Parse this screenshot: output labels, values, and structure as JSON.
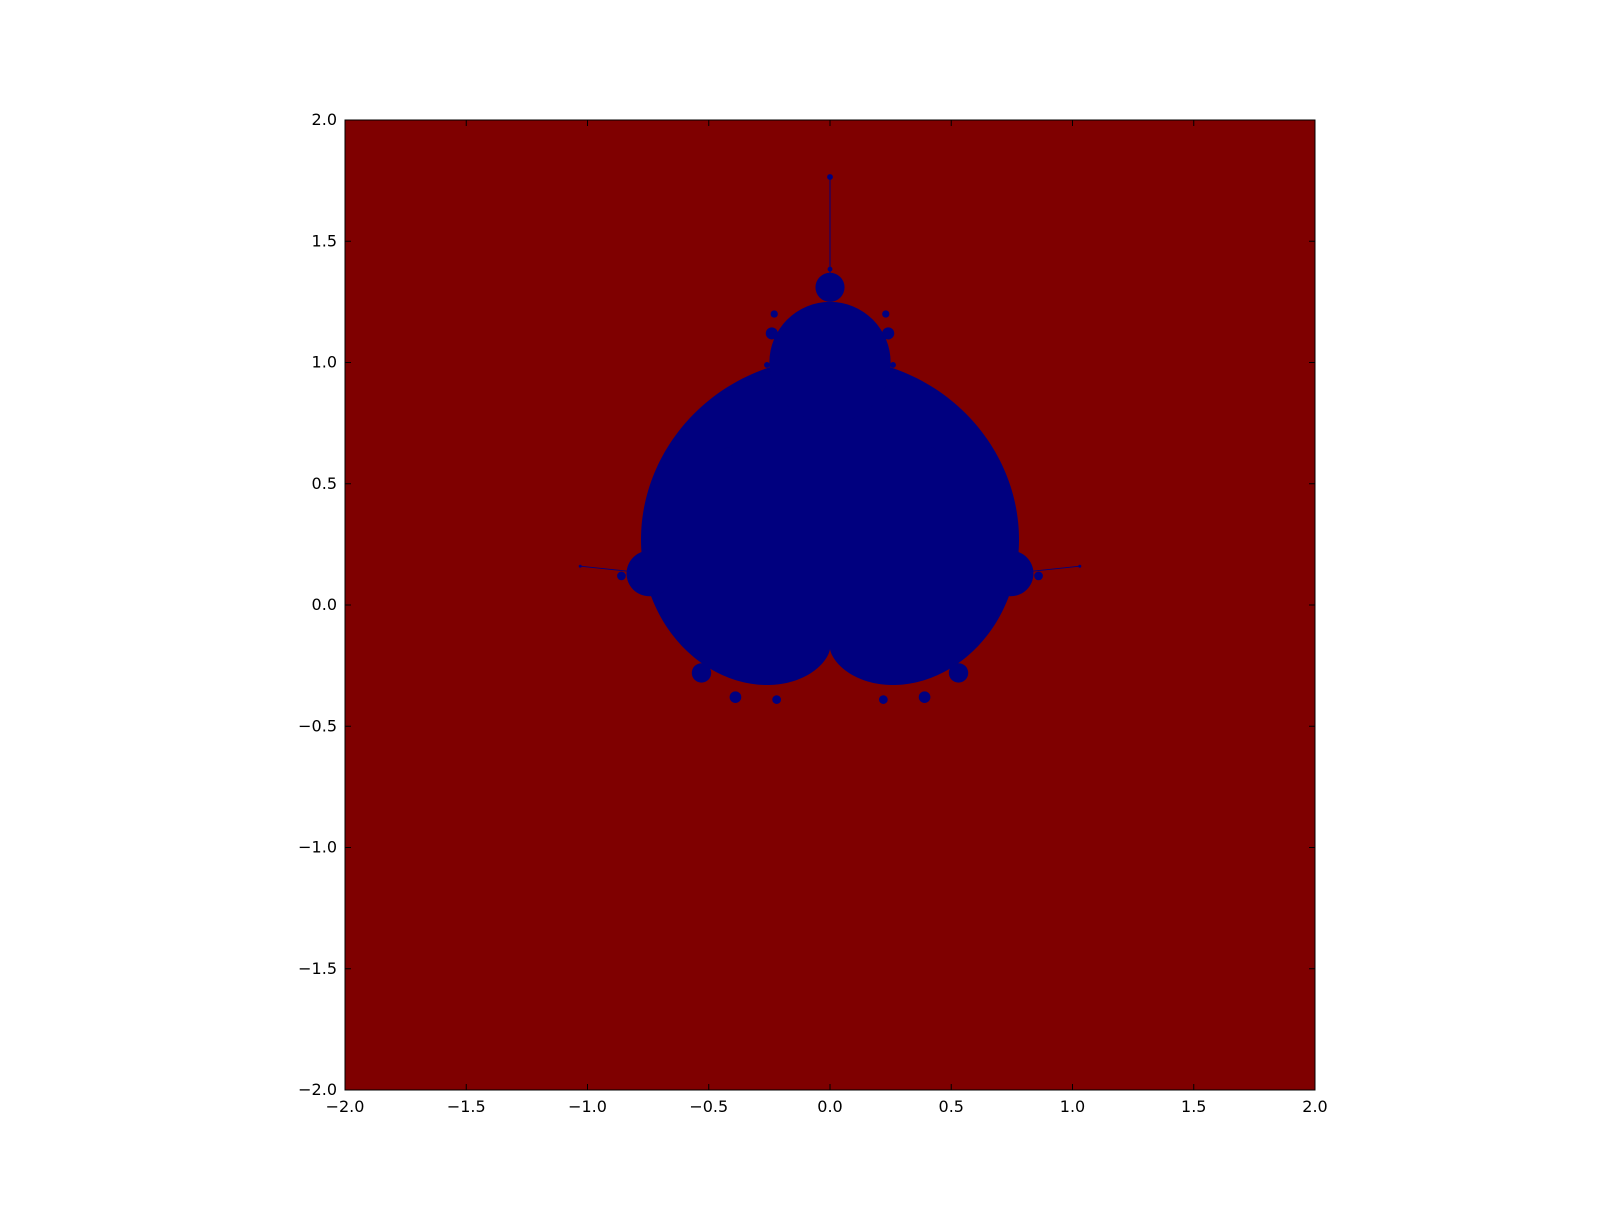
{
  "chart_data": {
    "type": "heatmap",
    "title": "",
    "xlabel": "",
    "ylabel": "",
    "xlim": [
      -2.0,
      2.0
    ],
    "ylim": [
      -2.0,
      2.0
    ],
    "grid": false,
    "legend": "none",
    "xticks": [
      -2.0,
      -1.5,
      -1.0,
      -0.5,
      0.0,
      0.5,
      1.0,
      1.5,
      2.0
    ],
    "yticks": [
      -2.0,
      -1.5,
      -1.0,
      -0.5,
      0.0,
      0.5,
      1.0,
      1.5,
      2.0
    ],
    "xtick_labels": [
      "−2.0",
      "−1.5",
      "−1.0",
      "−0.5",
      "0.0",
      "0.5",
      "1.0",
      "1.5",
      "2.0"
    ],
    "ytick_labels": [
      "−2.0",
      "−1.5",
      "−1.0",
      "−0.5",
      "0.0",
      "0.5",
      "1.0",
      "1.5",
      "2.0"
    ],
    "description_values": {
      "set": "Mandelbrot set, rotated so the main cardioid cusp points downward",
      "inside_color": "#00007f",
      "outside_color": "#7f0000"
    },
    "shapes": [
      {
        "kind": "cardioid-main",
        "cx": 0.0,
        "cy": 0.0,
        "r": 0.25,
        "orientation": "cusp-down"
      },
      {
        "kind": "bulb",
        "cx": 0.0,
        "cy": 1.0,
        "r": 0.25
      },
      {
        "kind": "bulb",
        "cx": 0.0,
        "cy": 1.31,
        "r": 0.06
      },
      {
        "kind": "bulb",
        "cx": -0.745,
        "cy": 0.13,
        "r": 0.094
      },
      {
        "kind": "bulb",
        "cx": 0.745,
        "cy": 0.13,
        "r": 0.094
      },
      {
        "kind": "bulb",
        "cx": -0.53,
        "cy": 0.51,
        "r": 0.038
      },
      {
        "kind": "bulb",
        "cx": 0.53,
        "cy": 0.51,
        "r": 0.038
      },
      {
        "kind": "bulb",
        "cx": -0.53,
        "cy": -0.28,
        "r": 0.04
      },
      {
        "kind": "bulb",
        "cx": 0.53,
        "cy": -0.28,
        "r": 0.04
      },
      {
        "kind": "bulb",
        "cx": -0.39,
        "cy": -0.38,
        "r": 0.024
      },
      {
        "kind": "bulb",
        "cx": 0.39,
        "cy": -0.38,
        "r": 0.024
      },
      {
        "kind": "bulb",
        "cx": -0.42,
        "cy": 0.63,
        "r": 0.02
      },
      {
        "kind": "bulb",
        "cx": 0.42,
        "cy": 0.63,
        "r": 0.02
      },
      {
        "kind": "bulb",
        "cx": -0.23,
        "cy": 1.2,
        "r": 0.015
      },
      {
        "kind": "bulb",
        "cx": 0.23,
        "cy": 1.2,
        "r": 0.015
      },
      {
        "kind": "bulb",
        "cx": -0.24,
        "cy": 1.12,
        "r": 0.025
      },
      {
        "kind": "bulb",
        "cx": 0.24,
        "cy": 1.12,
        "r": 0.025
      },
      {
        "kind": "bulb",
        "cx": -0.26,
        "cy": 0.99,
        "r": 0.012
      },
      {
        "kind": "bulb",
        "cx": 0.26,
        "cy": 0.99,
        "r": 0.012
      },
      {
        "kind": "bulb",
        "cx": -0.86,
        "cy": 0.12,
        "r": 0.018
      },
      {
        "kind": "bulb",
        "cx": 0.86,
        "cy": 0.12,
        "r": 0.018
      },
      {
        "kind": "bulb",
        "cx": 0.0,
        "cy": 1.765,
        "r": 0.012
      },
      {
        "kind": "bulb",
        "cx": -1.03,
        "cy": 0.16,
        "r": 0.005
      },
      {
        "kind": "bulb",
        "cx": 1.03,
        "cy": 0.16,
        "r": 0.005
      },
      {
        "kind": "bulb",
        "cx": -0.22,
        "cy": -0.39,
        "r": 0.018
      },
      {
        "kind": "bulb",
        "cx": 0.22,
        "cy": -0.39,
        "r": 0.018
      },
      {
        "kind": "bulb",
        "cx": 0.0,
        "cy": 1.385,
        "r": 0.01
      }
    ]
  }
}
